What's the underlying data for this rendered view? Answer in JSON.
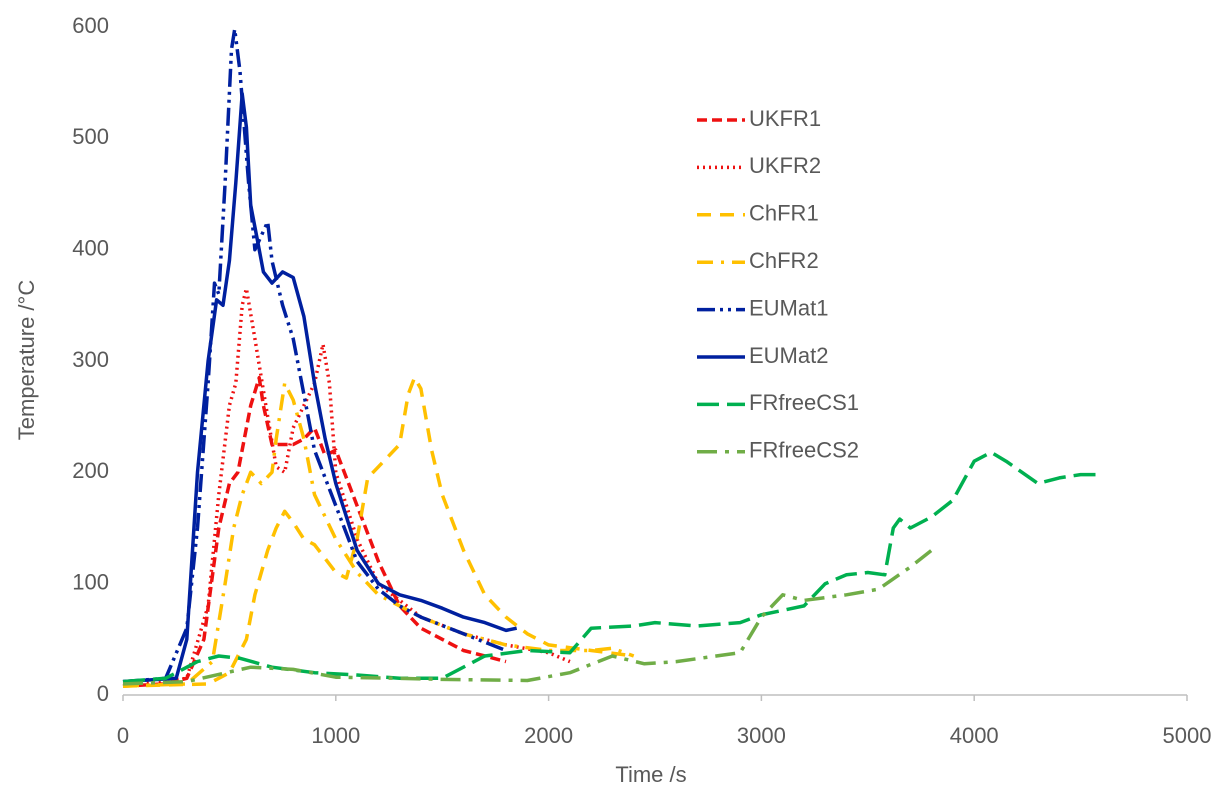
{
  "chart_data": {
    "type": "line",
    "x_label": "Time /s",
    "y_label": "Temperature /°C",
    "xlim": [
      0,
      5000
    ],
    "xticks": [
      0,
      1000,
      2000,
      3000,
      4000,
      5000
    ],
    "ylim": [
      0,
      600
    ],
    "yticks": [
      0,
      100,
      200,
      300,
      400,
      500,
      600
    ],
    "grid": false,
    "legend": "upper right",
    "series": [
      {
        "name": "UKFR1",
        "color": "#ee1111",
        "dash": "10 5",
        "x": [
          0,
          200,
          300,
          380,
          450,
          500,
          540,
          570,
          600,
          640,
          660,
          700,
          750,
          800,
          850,
          900,
          950,
          1000,
          1100,
          1200,
          1300,
          1400,
          1500,
          1600,
          1700,
          1800
        ],
        "values": [
          8,
          10,
          15,
          50,
          150,
          190,
          200,
          230,
          260,
          285,
          260,
          225,
          225,
          225,
          230,
          240,
          215,
          220,
          170,
          120,
          80,
          60,
          50,
          40,
          35,
          30
        ]
      },
      {
        "name": "UKFR2",
        "color": "#ee1111",
        "dash": "2 4",
        "x": [
          0,
          300,
          400,
          450,
          500,
          530,
          560,
          580,
          620,
          680,
          720,
          760,
          800,
          850,
          900,
          940,
          970,
          1000,
          1100,
          1200,
          1400,
          1600,
          1800,
          2000,
          2100
        ],
        "values": [
          8,
          15,
          80,
          180,
          260,
          280,
          350,
          365,
          320,
          250,
          205,
          200,
          240,
          260,
          280,
          315,
          280,
          200,
          140,
          100,
          70,
          55,
          45,
          38,
          30
        ]
      },
      {
        "name": "ChFR1",
        "color": "#ffc000",
        "dash": "14 9",
        "x": [
          0,
          400,
          500,
          580,
          620,
          680,
          720,
          760,
          800,
          850,
          900,
          1000,
          1050,
          1100,
          1150,
          1200,
          1300,
          1340,
          1370,
          1400,
          1450,
          1500,
          1600,
          1700,
          1800,
          1900,
          2000,
          2200,
          2400
        ],
        "values": [
          8,
          10,
          20,
          50,
          90,
          130,
          150,
          165,
          155,
          140,
          135,
          110,
          105,
          140,
          195,
          205,
          225,
          270,
          285,
          275,
          220,
          180,
          130,
          90,
          70,
          55,
          45,
          40,
          35
        ]
      },
      {
        "name": "ChFR2",
        "color": "#ffc000",
        "dash": "16 8 3 8",
        "x": [
          0,
          300,
          420,
          480,
          520,
          560,
          600,
          650,
          700,
          720,
          760,
          800,
          850,
          900,
          1000,
          1100,
          1200,
          1400,
          1600,
          1800,
          2000,
          2200,
          2300,
          2400
        ],
        "values": [
          8,
          10,
          30,
          100,
          150,
          180,
          200,
          190,
          200,
          230,
          280,
          265,
          230,
          180,
          140,
          110,
          90,
          70,
          55,
          45,
          40,
          40,
          42,
          35
        ]
      },
      {
        "name": "EUMat1",
        "color": "#00209f",
        "dash": "18 5 3 5 3 5",
        "x": [
          0,
          200,
          300,
          350,
          400,
          430,
          450,
          480,
          510,
          525,
          550,
          590,
          620,
          680,
          700,
          750,
          800,
          850,
          900,
          1000,
          1100,
          1200,
          1300,
          1400,
          1600,
          1800
        ],
        "values": [
          12,
          15,
          60,
          150,
          280,
          370,
          360,
          460,
          580,
          598,
          560,
          460,
          400,
          425,
          390,
          350,
          320,
          270,
          220,
          170,
          120,
          95,
          80,
          70,
          55,
          40
        ]
      },
      {
        "name": "EUMat2",
        "color": "#00209f",
        "dash": "none",
        "x": [
          0,
          250,
          300,
          350,
          400,
          440,
          470,
          500,
          530,
          560,
          580,
          600,
          630,
          660,
          700,
          750,
          800,
          850,
          900,
          950,
          1000,
          1100,
          1200,
          1300,
          1400,
          1500,
          1600,
          1700,
          1800,
          1850
        ],
        "values": [
          12,
          15,
          50,
          200,
          300,
          355,
          350,
          390,
          460,
          540,
          510,
          440,
          410,
          380,
          370,
          380,
          375,
          340,
          280,
          230,
          190,
          130,
          100,
          90,
          85,
          78,
          70,
          65,
          58,
          60
        ]
      },
      {
        "name": "FRfreeCS1",
        "color": "#00b050",
        "dash": "22 8",
        "x": [
          0,
          200,
          350,
          450,
          550,
          700,
          900,
          1100,
          1300,
          1500,
          1700,
          1900,
          2100,
          2200,
          2400,
          2500,
          2700,
          2900,
          3000,
          3200,
          3300,
          3400,
          3500,
          3580,
          3620,
          3650,
          3700,
          3800,
          3900,
          4000,
          4080,
          4150,
          4300,
          4400,
          4500,
          4570
        ],
        "values": [
          12,
          15,
          30,
          35,
          33,
          25,
          20,
          18,
          15,
          15,
          35,
          40,
          38,
          60,
          62,
          65,
          62,
          65,
          72,
          80,
          100,
          108,
          110,
          108,
          150,
          158,
          150,
          160,
          175,
          210,
          218,
          210,
          190,
          195,
          198,
          198
        ]
      },
      {
        "name": "FRfreeCS2",
        "color": "#70ad47",
        "dash": "20 8 4 8",
        "x": [
          0,
          300,
          600,
          800,
          1000,
          1300,
          1500,
          1900,
          2100,
          2300,
          2450,
          2600,
          2900,
          3000,
          3100,
          3200,
          3400,
          3550,
          3700,
          3800
        ],
        "values": [
          10,
          12,
          25,
          23,
          16,
          15,
          14,
          13,
          20,
          35,
          28,
          30,
          38,
          70,
          90,
          85,
          90,
          95,
          115,
          130
        ]
      }
    ]
  }
}
